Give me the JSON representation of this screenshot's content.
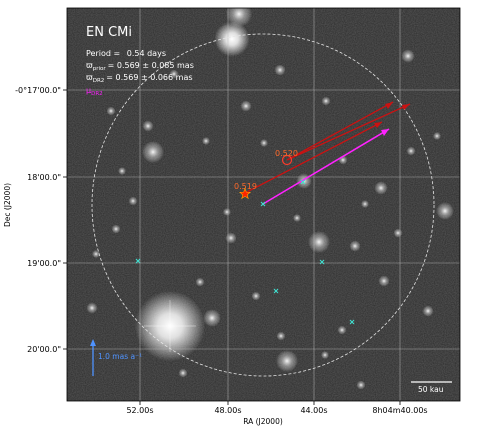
{
  "chart_data": {
    "type": "scatter",
    "title": "EN CMi",
    "xlabel": "RA (J2000)",
    "ylabel": "Dec (J2000)",
    "grid": true,
    "info": {
      "period_label": "Period =",
      "period_value": "0.54 days",
      "prior_label": "ϖ",
      "prior_sub": "prior",
      "prior_value": "= 0.569 ± 0.085 mas",
      "dr2_label": "ϖ",
      "dr2_sub": "DR2",
      "dr2_value": "= 0.569 ± 0.066 mas",
      "mu_label": "μ",
      "mu_sub": "DR2"
    },
    "x_ticks": [
      "52.00s",
      "48.00s",
      "44.00s",
      "8h04m40.00s"
    ],
    "y_ticks": [
      "-0°17'00.0\"",
      "18'00.0\"",
      "19'00.0\"",
      "20'00.0\""
    ],
    "source_labels": [
      {
        "text": "0.520",
        "color": "#ff6a2a"
      },
      {
        "text": "0.519",
        "color": "#ff6a2a"
      }
    ],
    "scale_vector_label": "1.0 mas a⁻¹",
    "scale_bar_label": "50 kau",
    "colors": {
      "target": "#ff2200",
      "candidate": "#cc1111",
      "dr2_vector": "#ff22ff",
      "cross": "#40e0d0",
      "scale_vector": "#4f93ff",
      "circle": "#e6e6e6"
    }
  }
}
